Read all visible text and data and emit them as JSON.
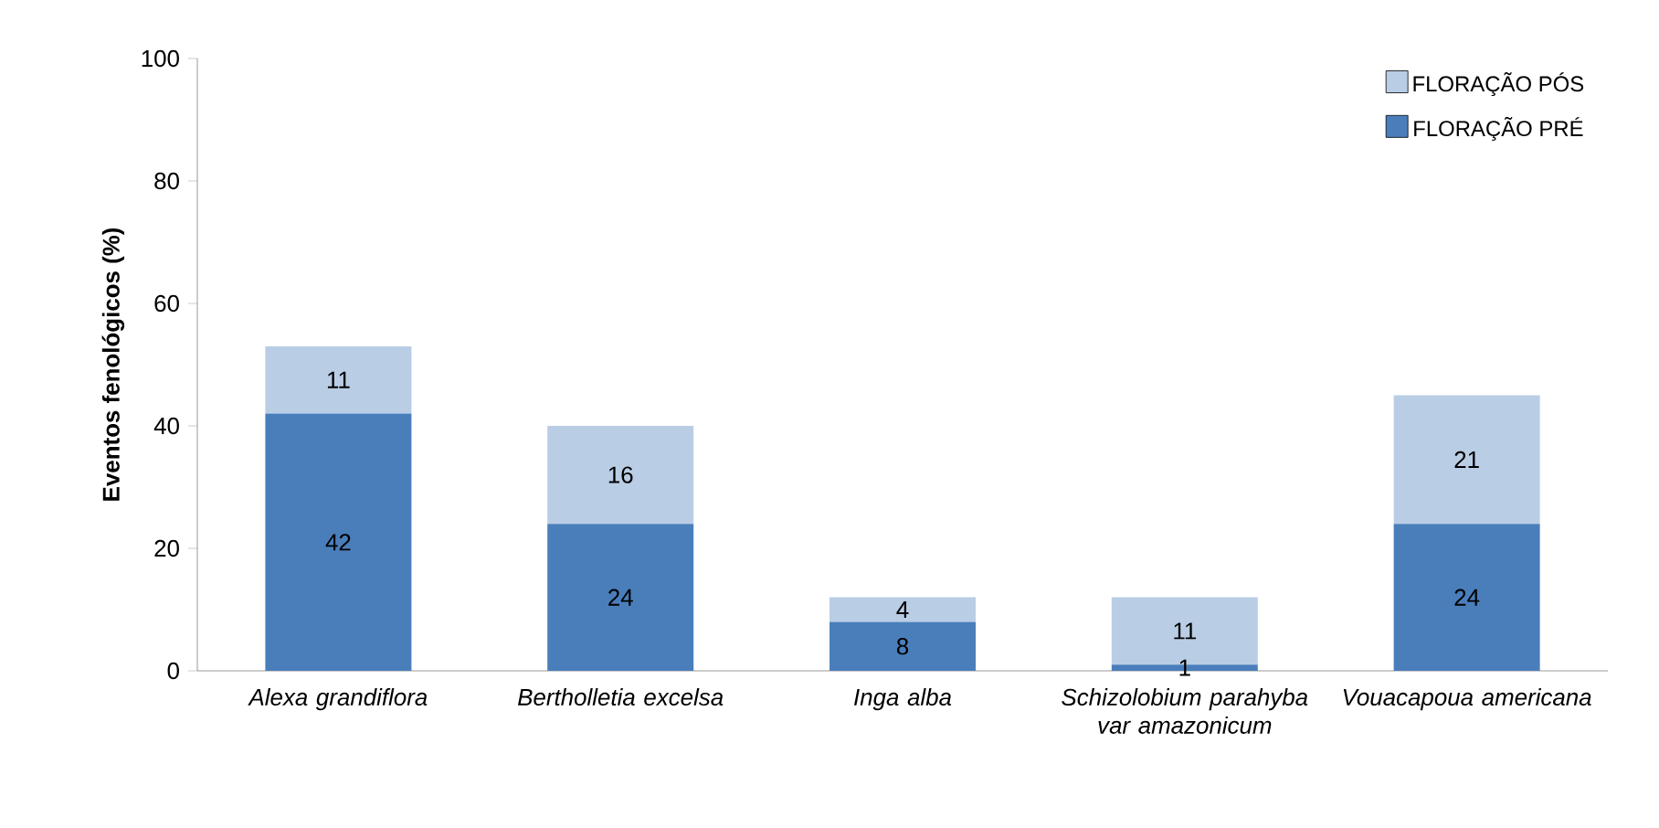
{
  "chart_data": {
    "type": "bar",
    "stacked": true,
    "ylabel": "Eventos fenológicos (%)",
    "categories": [
      "Alexa grandiflora",
      "Bertholletia excelsa",
      "Inga alba",
      "Schizolobium parahyba var amazonicum",
      "Vouacapoua americana"
    ],
    "series": [
      {
        "name": "FLORAÇÃO PRÉ",
        "color": "#4a7ebb",
        "values": [
          42,
          24,
          8,
          1,
          24
        ]
      },
      {
        "name": "FLORAÇÃO PÓS",
        "color": "#b9cde5",
        "values": [
          11,
          16,
          4,
          11,
          21
        ]
      }
    ],
    "ylim": [
      0,
      100
    ],
    "yticks": [
      0,
      20,
      40,
      60,
      80,
      100
    ],
    "data_labels": true,
    "legend": "top right",
    "grid": false
  }
}
